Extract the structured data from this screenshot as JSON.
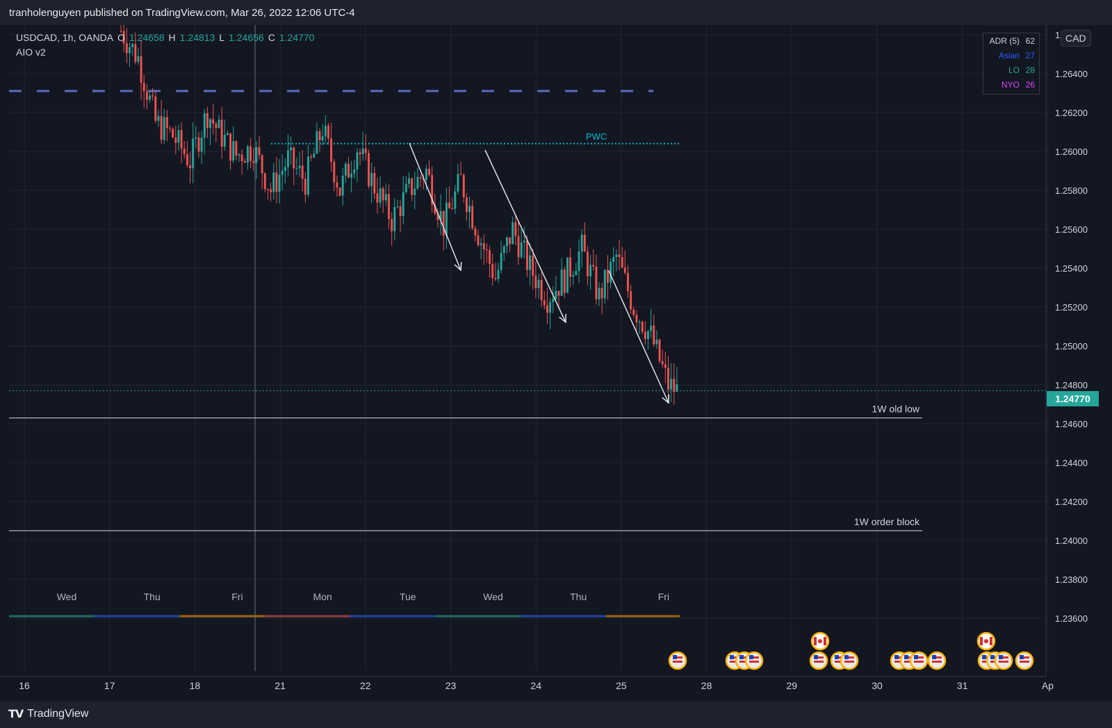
{
  "header": {
    "published": "tranholenguyen published on TradingView.com, Mar 26, 2022 12:06 UTC-4"
  },
  "footer": {
    "brand": "TradingView",
    "logo": "TV"
  },
  "legend": {
    "symbol": "USDCAD, 1h, OANDA",
    "o_label": "O",
    "o_value": "1.24658",
    "h_label": "H",
    "h_value": "1.24813",
    "l_label": "L",
    "l_value": "1.24656",
    "c_label": "C",
    "c_value": "1.24770",
    "indicator": "AIO v2"
  },
  "adr_box": {
    "rows": [
      {
        "label": "ADR (5)",
        "value": "62",
        "color": "#d1d4dc"
      },
      {
        "label": "Asian",
        "value": "27",
        "color": "#2962ff"
      },
      {
        "label": "LO",
        "value": "28",
        "color": "#26a69a"
      },
      {
        "label": "NYO",
        "value": "26",
        "color": "#e040fb"
      }
    ]
  },
  "currency_button": "CAD",
  "current_price_label": "1.24770",
  "chart_data": {
    "type": "candlestick",
    "symbol": "USDCAD",
    "timeframe": "1h",
    "exchange": "OANDA",
    "ylim": [
      1.2345,
      1.2665
    ],
    "y_ticks": [
      "1.26600",
      "1.26400",
      "1.26200",
      "1.26000",
      "1.25800",
      "1.25600",
      "1.25400",
      "1.25200",
      "1.25000",
      "1.24800",
      "1.24600",
      "1.24400",
      "1.24200",
      "1.24000",
      "1.23800",
      "1.23600"
    ],
    "x_axis_labels": [
      "16",
      "17",
      "18",
      "21",
      "22",
      "23",
      "24",
      "25",
      "28",
      "29",
      "30",
      "31",
      "Ap"
    ],
    "weekday_labels": [
      "Wed",
      "Thu",
      "Fri",
      "Mon",
      "Tue",
      "Wed",
      "Thu",
      "Fri"
    ],
    "close_path": [
      [
        0,
        1.2662
      ],
      [
        6,
        1.2648
      ],
      [
        12,
        1.2615
      ],
      [
        18,
        1.2608
      ],
      [
        24,
        1.2595
      ],
      [
        30,
        1.262
      ],
      [
        34,
        1.261
      ],
      [
        40,
        1.2598
      ],
      [
        46,
        1.2602
      ],
      [
        52,
        1.258
      ],
      [
        58,
        1.2596
      ],
      [
        64,
        1.2585
      ],
      [
        70,
        1.2612
      ],
      [
        76,
        1.258
      ],
      [
        82,
        1.2602
      ],
      [
        88,
        1.2582
      ],
      [
        94,
        1.2565
      ],
      [
        100,
        1.258
      ],
      [
        106,
        1.259
      ],
      [
        112,
        1.2562
      ],
      [
        118,
        1.2585
      ],
      [
        124,
        1.2558
      ],
      [
        130,
        1.2535
      ],
      [
        136,
        1.256
      ],
      [
        142,
        1.254
      ],
      [
        148,
        1.2525
      ],
      [
        154,
        1.2535
      ],
      [
        160,
        1.255
      ],
      [
        166,
        1.2525
      ],
      [
        172,
        1.2546
      ],
      [
        178,
        1.252
      ],
      [
        184,
        1.2505
      ],
      [
        190,
        1.248
      ],
      [
        193,
        1.2477
      ]
    ],
    "current_price": 1.2477,
    "levels": [
      {
        "name": "PWC",
        "value": 1.2604
      },
      {
        "name": "1W old low",
        "value": 1.2463
      },
      {
        "name": "1W order block",
        "value": 1.2405
      }
    ]
  }
}
